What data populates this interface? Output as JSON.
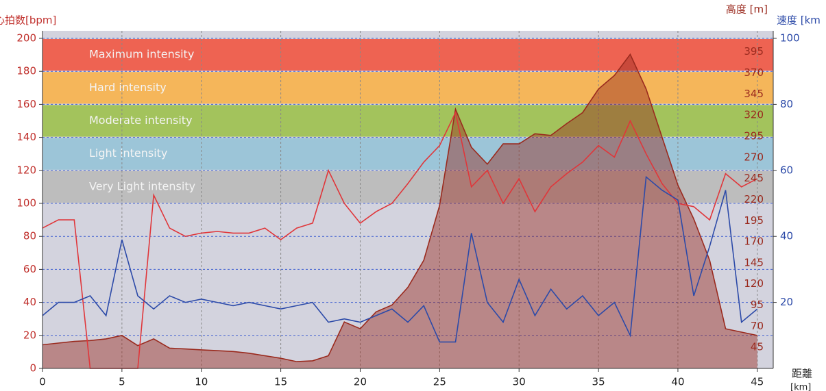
{
  "chart_data": {
    "type": "line",
    "y_label": "心拍数[bpm]",
    "y2_label": "高度 [m]",
    "y3_label": "速度 [km",
    "x_label": "距離",
    "x_unit": "[km]",
    "xlim": [
      0,
      46
    ],
    "xticks": [
      0,
      5,
      10,
      15,
      20,
      25,
      30,
      35,
      40,
      45
    ],
    "ylim": [
      0,
      200
    ],
    "yticks": [
      0,
      20,
      40,
      60,
      80,
      100,
      120,
      140,
      160,
      180,
      200
    ],
    "y2lim": [
      20,
      411
    ],
    "y2ticks": [
      45,
      70,
      95,
      120,
      145,
      170,
      195,
      220,
      245,
      270,
      295,
      320,
      345,
      370,
      395
    ],
    "y3lim": [
      0,
      100
    ],
    "y3ticks": [
      20,
      40,
      60,
      80,
      100
    ],
    "grid": true,
    "zones": [
      {
        "label": "Maximum intensity",
        "from": 180,
        "to": 200,
        "color": "#ee6352"
      },
      {
        "label": "Hard intensity",
        "from": 160,
        "to": 180,
        "color": "#f5b65a"
      },
      {
        "label": "Moderate intensity",
        "from": 140,
        "to": 160,
        "color": "#a3c35c"
      },
      {
        "label": "Light intensity",
        "from": 120,
        "to": 140,
        "color": "#9cc5d8"
      },
      {
        "label": "Very Light intensity",
        "from": 100,
        "to": 120,
        "color": "#bdbdbd"
      }
    ],
    "x": [
      0,
      1,
      2,
      3,
      4,
      5,
      6,
      7,
      8,
      9,
      10,
      11,
      12,
      13,
      14,
      15,
      16,
      17,
      18,
      19,
      20,
      21,
      22,
      23,
      24,
      25,
      26,
      27,
      28,
      29,
      30,
      31,
      32,
      33,
      34,
      35,
      36,
      37,
      38,
      39,
      40,
      41,
      42,
      43,
      44,
      45
    ],
    "series": [
      {
        "axis": "y2",
        "fill": true,
        "color": "#9a2a1e",
        "values": [
          48,
          50,
          52,
          53,
          55,
          59,
          47,
          55,
          44,
          43,
          42,
          41,
          40,
          38,
          35,
          32,
          28,
          29,
          35,
          75,
          67,
          87,
          95,
          116,
          148,
          213,
          327,
          282,
          262,
          286,
          286,
          298,
          296,
          310,
          323,
          351,
          367,
          392,
          351,
          294,
          237,
          197,
          148,
          67,
          63,
          59
        ]
      },
      {
        "axis": "y",
        "color": "#e0363a",
        "values": [
          85,
          90,
          90,
          0,
          0,
          0,
          0,
          105,
          85,
          80,
          82,
          83,
          82,
          82,
          85,
          78,
          85,
          88,
          120,
          100,
          88,
          95,
          100,
          112,
          125,
          135,
          155,
          110,
          120,
          100,
          115,
          95,
          110,
          118,
          125,
          135,
          128,
          150,
          130,
          112,
          100,
          98,
          90,
          118,
          110,
          115
        ]
      },
      {
        "axis": "y3",
        "color": "#2c4aa8",
        "values": [
          16,
          20,
          20,
          22,
          16,
          39,
          22,
          18,
          22,
          20,
          21,
          20,
          19,
          20,
          19,
          18,
          19,
          20,
          14,
          15,
          14,
          16,
          18,
          14,
          19,
          8,
          8,
          41,
          20,
          14,
          27,
          16,
          24,
          18,
          22,
          16,
          20,
          10,
          58,
          54,
          51,
          22,
          37,
          54,
          14,
          18
        ]
      }
    ]
  }
}
